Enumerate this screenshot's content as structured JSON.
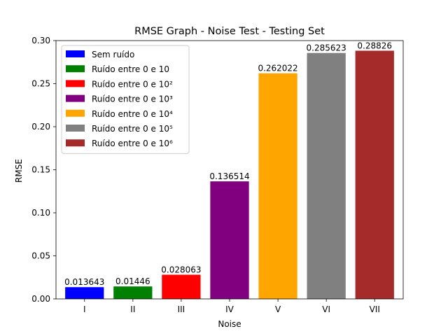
{
  "chart_data": {
    "type": "bar",
    "title": "RMSE Graph - Noise Test - Testing Set",
    "xlabel": "Noise",
    "ylabel": "RMSE",
    "ylim": [
      0,
      0.3
    ],
    "yticks": [
      "0.00",
      "0.05",
      "0.10",
      "0.15",
      "0.20",
      "0.25",
      "0.30"
    ],
    "ytick_values": [
      0,
      0.05,
      0.1,
      0.15,
      0.2,
      0.25,
      0.3
    ],
    "categories": [
      "I",
      "II",
      "III",
      "IV",
      "V",
      "VI",
      "VII"
    ],
    "values": [
      0.013643,
      0.01446,
      0.028063,
      0.136514,
      0.262022,
      0.285623,
      0.28826
    ],
    "value_labels": [
      "0.013643",
      "0.01446",
      "0.028063",
      "0.136514",
      "0.262022",
      "0.285623",
      "0.28826"
    ],
    "colors": [
      "#0000ff",
      "#008000",
      "#ff0000",
      "#800080",
      "#ffa500",
      "#808080",
      "#a52a2a"
    ],
    "legend": {
      "position": "top-left",
      "entries": [
        "Sem ruído",
        "Ruído entre 0 e 10",
        "Ruído entre 0 e 10²",
        "Ruído entre 0 e 10³",
        "Ruído entre 0 e 10⁴",
        "Ruído entre 0 e 10⁵",
        "Ruído entre 0 e 10⁶"
      ]
    },
    "grid": false
  }
}
